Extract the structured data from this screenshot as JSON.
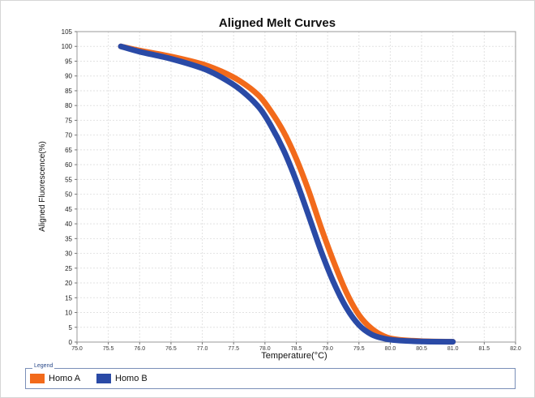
{
  "chart_data": {
    "type": "line",
    "title": "Aligned Melt Curves",
    "xlabel": "Temperature(°C)",
    "ylabel": "Aligned Fluorescence(%)",
    "xlim": [
      75.0,
      82.0
    ],
    "ylim": [
      0,
      105
    ],
    "x_ticks": [
      "75.0",
      "75.5",
      "76.0",
      "76.5",
      "77.0",
      "77.5",
      "78.0",
      "78.5",
      "79.0",
      "79.5",
      "80.0",
      "80.5",
      "81.0",
      "81.5",
      "82.0"
    ],
    "y_ticks": [
      "0",
      "5",
      "10",
      "15",
      "20",
      "25",
      "30",
      "35",
      "40",
      "45",
      "50",
      "55",
      "60",
      "65",
      "70",
      "75",
      "80",
      "85",
      "90",
      "95",
      "100",
      "105"
    ],
    "grid": true,
    "legend_title": "Legend",
    "legend_position": "bottom",
    "series": [
      {
        "name": "Homo A",
        "color": "#f26a1b",
        "x": [
          75.7,
          76.0,
          76.5,
          77.0,
          77.3,
          77.6,
          77.9,
          78.1,
          78.3,
          78.5,
          78.7,
          78.9,
          79.1,
          79.3,
          79.5,
          79.7,
          79.9,
          80.1,
          80.5,
          81.0
        ],
        "y": [
          100,
          98.6,
          96.6,
          94.0,
          91.6,
          88.3,
          83.4,
          77.9,
          71.0,
          62.0,
          51.0,
          38.5,
          27.0,
          16.8,
          9.2,
          4.6,
          2.0,
          0.9,
          0.3,
          0.1
        ]
      },
      {
        "name": "Homo B",
        "color": "#2a4aa6",
        "x": [
          75.7,
          76.0,
          76.5,
          77.0,
          77.3,
          77.6,
          77.9,
          78.1,
          78.3,
          78.5,
          78.7,
          78.9,
          79.1,
          79.3,
          79.5,
          79.7,
          79.9,
          80.1,
          80.5,
          81.0
        ],
        "y": [
          100,
          98.2,
          95.8,
          92.6,
          89.6,
          85.5,
          79.5,
          73.0,
          64.8,
          54.5,
          42.6,
          30.5,
          20.0,
          11.6,
          5.8,
          2.6,
          1.2,
          0.6,
          0.2,
          0.1
        ]
      }
    ]
  }
}
